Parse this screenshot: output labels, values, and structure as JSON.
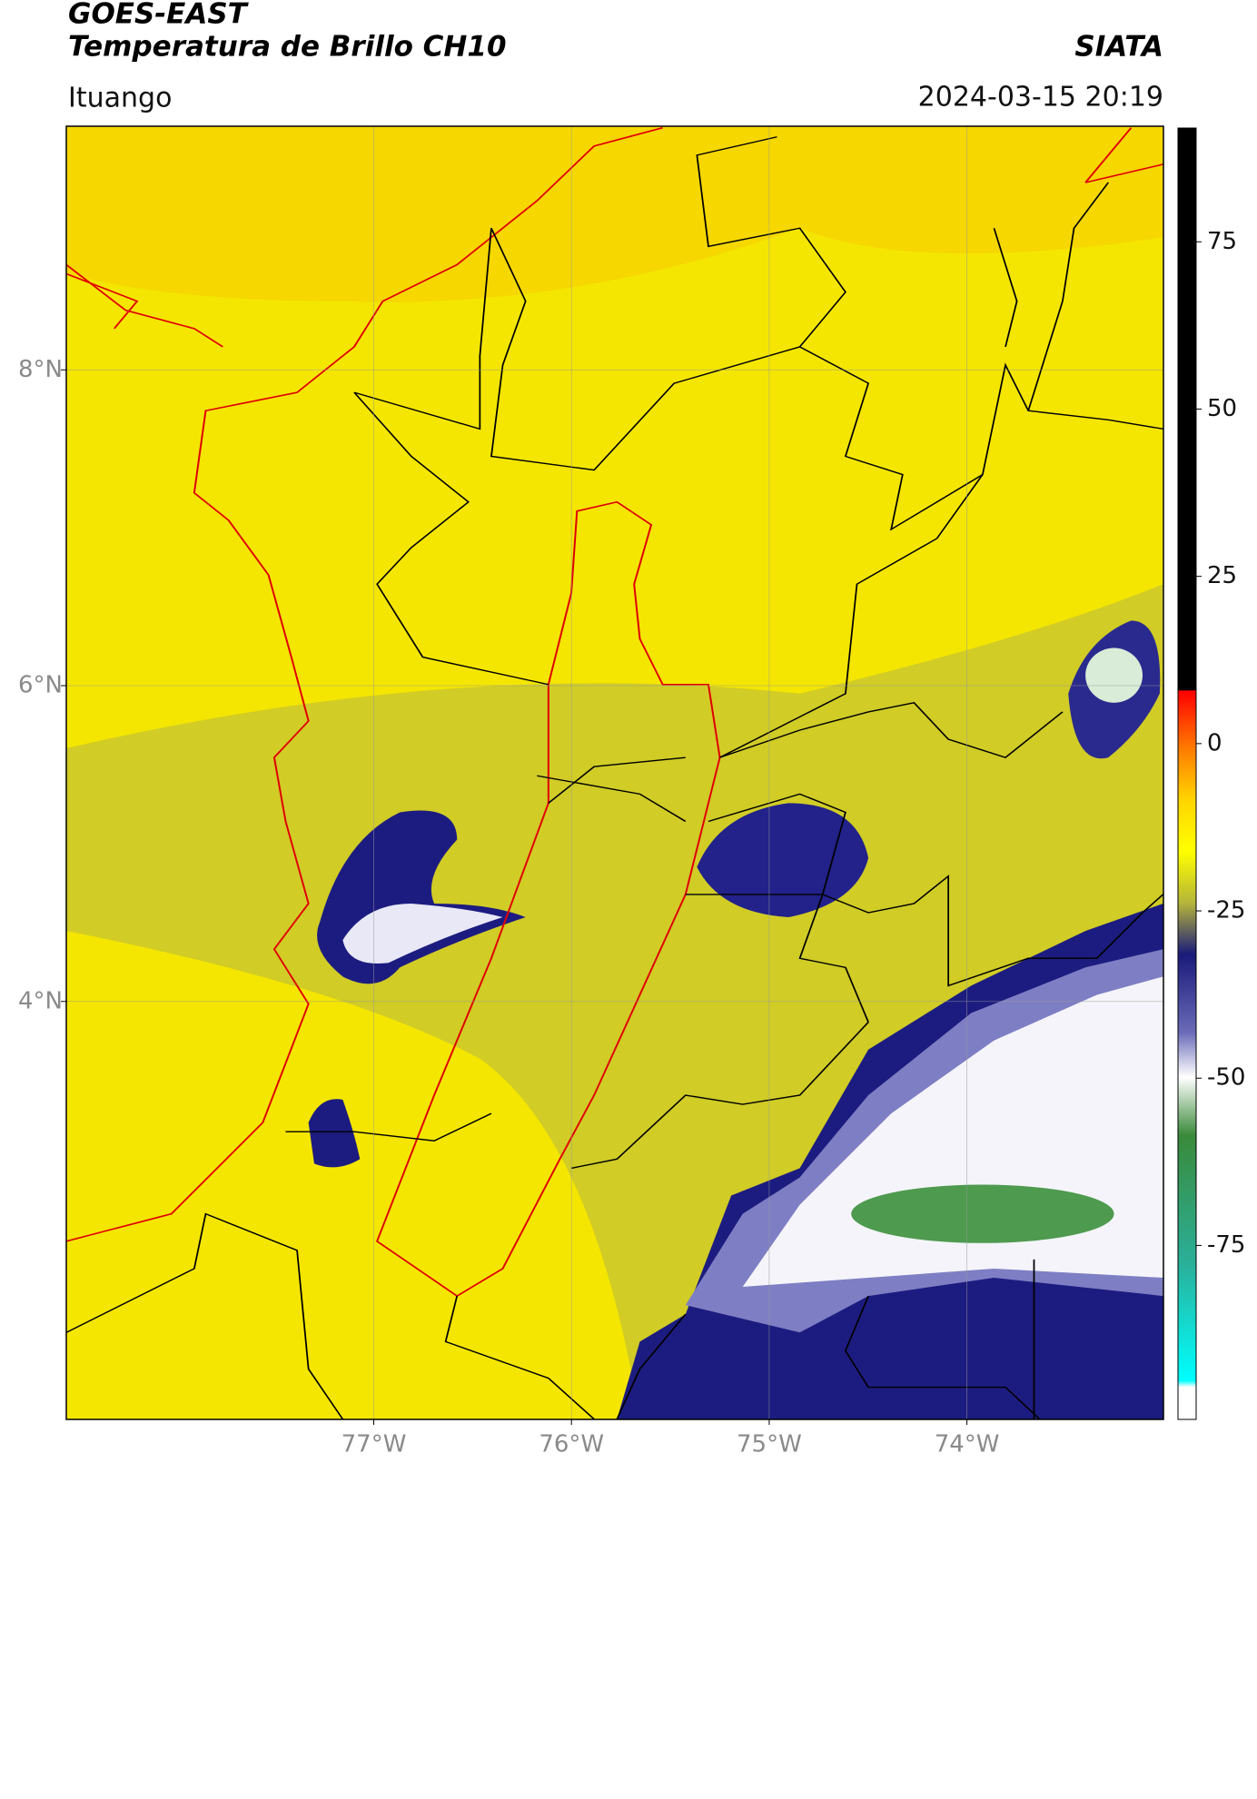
{
  "header": {
    "title": "GOES-EAST",
    "subtitle": "Temperatura de Brillo CH10",
    "source": "SIATA",
    "location": "Ituango",
    "datetime": "2024-03-15 20:19"
  },
  "map": {
    "xlim": [
      -78.555,
      -73.006
    ],
    "ylim": [
      1.353,
      9.543
    ],
    "xticks": [
      {
        "value": -77,
        "label": "77°W"
      },
      {
        "value": -76,
        "label": "76°W"
      },
      {
        "value": -75,
        "label": "75°W"
      },
      {
        "value": -74,
        "label": "74°W"
      }
    ],
    "yticks": [
      {
        "value": 8,
        "label": "8°N"
      },
      {
        "value": 6,
        "label": "6°N"
      },
      {
        "value": 4,
        "label": "4°N"
      }
    ],
    "grid": true
  },
  "colorbar": {
    "lim": [
      -101,
      92
    ],
    "ticks": [
      75,
      50,
      25,
      0,
      -25,
      -50,
      -75
    ]
  }
}
